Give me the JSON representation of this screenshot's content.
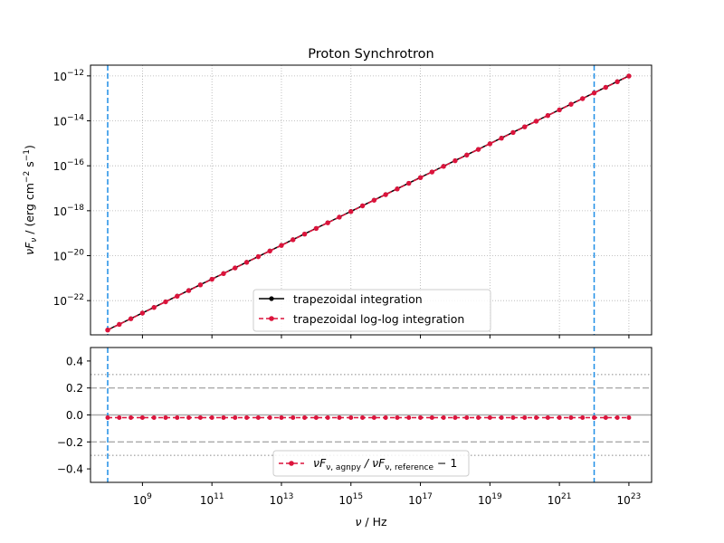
{
  "chart_data": [
    {
      "type": "line",
      "title": "Proton Synchrotron",
      "xscale": "log",
      "yscale": "log",
      "xlim": [
        32000000.0,
        4.5e+23
      ],
      "ylim": [
        3e-24,
        3e-12
      ],
      "grid": true,
      "ylabel": {
        "main": "νF",
        "sub": "ν",
        "mid": " / (erg cm",
        "sup1": "−2",
        "mid2": " s",
        "sup2": "−1",
        "end": ")"
      },
      "xticks": [
        {
          "base": "10",
          "exp": "9",
          "value": 1000000000.0
        },
        {
          "base": "10",
          "exp": "11",
          "value": 100000000000.0
        },
        {
          "base": "10",
          "exp": "13",
          "value": 10000000000000.0
        },
        {
          "base": "10",
          "exp": "15",
          "value": 1000000000000000.0
        },
        {
          "base": "10",
          "exp": "17",
          "value": 1e+17
        },
        {
          "base": "10",
          "exp": "19",
          "value": 1e+19
        },
        {
          "base": "10",
          "exp": "21",
          "value": 1e+21
        },
        {
          "base": "10",
          "exp": "23",
          "value": 1e+23
        }
      ],
      "yticks": [
        {
          "base": "10",
          "exp": "−22",
          "value": 1e-22
        },
        {
          "base": "10",
          "exp": "−20",
          "value": 1e-20
        },
        {
          "base": "10",
          "exp": "−18",
          "value": 1e-18
        },
        {
          "base": "10",
          "exp": "−16",
          "value": 1e-16
        },
        {
          "base": "10",
          "exp": "−14",
          "value": 1e-14
        },
        {
          "base": "10",
          "exp": "−12",
          "value": 1e-12
        }
      ],
      "vlines": [
        100000000.0,
        1e+22
      ],
      "vline_color": "#1f8ee6",
      "legend": {
        "placement": "lower-center"
      },
      "series": [
        {
          "name": "trapezoidal integration",
          "color": "#000000",
          "style": "solid",
          "x_range": [
            100000000.0,
            1e+23
          ],
          "y_range": [
            5e-24,
            1e-12
          ],
          "n_points": 46
        },
        {
          "name": "trapezoidal log-log integration",
          "color": "#dc143c",
          "style": "dashed",
          "x_range": [
            100000000.0,
            1e+23
          ],
          "y_range": [
            4.9e-24,
            9.8e-13
          ],
          "n_points": 46
        }
      ]
    },
    {
      "type": "line",
      "xscale": "log",
      "xlim": [
        32000000.0,
        4.5e+23
      ],
      "ylim": [
        -0.5,
        0.5
      ],
      "xlabel": {
        "main": "ν",
        "mid": " / Hz"
      },
      "yticks": [
        "0.4",
        "0.2",
        "0.0",
        "−0.2",
        "−0.4"
      ],
      "ytick_values": [
        0.4,
        0.2,
        0,
        -0.2,
        -0.4
      ],
      "hlines": [
        {
          "value": 0.0,
          "style": "solid",
          "color": "#aaaaaa"
        },
        {
          "value": 0.2,
          "style": "dashed",
          "color": "#aaaaaa"
        },
        {
          "value": -0.2,
          "style": "dashed",
          "color": "#aaaaaa"
        },
        {
          "value": 0.3,
          "style": "dotted",
          "color": "#aaaaaa"
        },
        {
          "value": -0.3,
          "style": "dotted",
          "color": "#aaaaaa"
        }
      ],
      "vlines": [
        100000000.0,
        1e+22
      ],
      "legend": {
        "placement": "lower-center"
      },
      "series": [
        {
          "name": {
            "a": "νF",
            "b": "ν, agnpy",
            "c": " / νF",
            "d": "ν, reference",
            "e": " − 1"
          },
          "color": "#dc143c",
          "style": "dashed",
          "x_range": [
            100000000.0,
            1e+23
          ],
          "value": -0.02,
          "n_points": 46
        }
      ]
    }
  ]
}
